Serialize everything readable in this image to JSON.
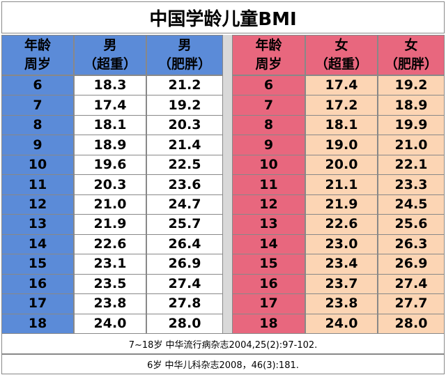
{
  "title": "中国学龄儿童BMI",
  "boys": {
    "header": [
      [
        "年龄",
        "周岁"
      ],
      [
        "男",
        "（超重）"
      ],
      [
        "男",
        "（肥胖）"
      ]
    ],
    "rows": [
      [
        "6",
        "18.3",
        "21.2"
      ],
      [
        "7",
        "17.4",
        "19.2"
      ],
      [
        "8",
        "18.1",
        "20.3"
      ],
      [
        "9",
        "18.9",
        "21.4"
      ],
      [
        "10",
        "19.6",
        "22.5"
      ],
      [
        "11",
        "20.3",
        "23.6"
      ],
      [
        "12",
        "21.0",
        "24.7"
      ],
      [
        "13",
        "21.9",
        "25.7"
      ],
      [
        "14",
        "22.6",
        "26.4"
      ],
      [
        "15",
        "23.1",
        "26.9"
      ],
      [
        "16",
        "23.5",
        "27.4"
      ],
      [
        "17",
        "23.8",
        "27.8"
      ],
      [
        "18",
        "24.0",
        "28.0"
      ]
    ]
  },
  "girls": {
    "header": [
      [
        "年龄",
        "周岁"
      ],
      [
        "女",
        "（超重）"
      ],
      [
        "女",
        "（肥胖）"
      ]
    ],
    "rows": [
      [
        "6",
        "17.4",
        "19.2"
      ],
      [
        "7",
        "17.2",
        "18.9"
      ],
      [
        "8",
        "18.1",
        "19.9"
      ],
      [
        "9",
        "19.0",
        "21.0"
      ],
      [
        "10",
        "20.0",
        "22.1"
      ],
      [
        "11",
        "21.1",
        "23.3"
      ],
      [
        "12",
        "21.9",
        "24.5"
      ],
      [
        "13",
        "22.6",
        "25.6"
      ],
      [
        "14",
        "23.0",
        "26.3"
      ],
      [
        "15",
        "23.4",
        "26.9"
      ],
      [
        "16",
        "23.7",
        "27.4"
      ],
      [
        "17",
        "23.8",
        "27.7"
      ],
      [
        "18",
        "24.0",
        "28.0"
      ]
    ]
  },
  "footnotes": [
    "7~18岁 中华流行病杂志2004,25(2):97-102.",
    "6岁 中华儿科杂志2008，46(3):181."
  ]
}
